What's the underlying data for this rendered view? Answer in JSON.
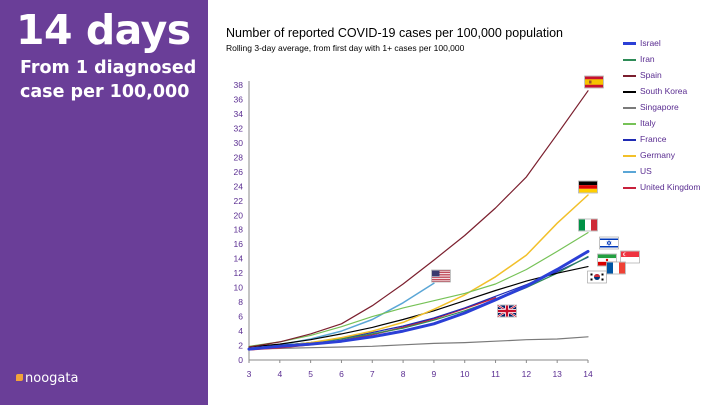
{
  "panel": {
    "title": "14 days",
    "subtitle": "From 1 diagnosed case per 100,000",
    "brand": "noogata"
  },
  "colors": {
    "panel_background": "#6a3e98",
    "brand_accent": "#f2a33a"
  },
  "chart_data": {
    "type": "line",
    "title": "Number of reported COVID-19 cases per 100,000 population",
    "subtitle": "Rolling 3-day average, from first day with 1+ cases per 100,000",
    "xlabel": "",
    "ylabel": "",
    "xlim": [
      3,
      14
    ],
    "ylim": [
      0,
      38
    ],
    "x_ticks": [
      3,
      4,
      5,
      6,
      7,
      8,
      9,
      10,
      11,
      12,
      13,
      14
    ],
    "y_ticks": [
      0,
      2,
      4,
      6,
      8,
      10,
      12,
      14,
      16,
      18,
      20,
      22,
      24,
      26,
      28,
      30,
      32,
      34,
      36,
      38
    ],
    "grid": false,
    "legend_position": "right",
    "series": [
      {
        "name": "Israel",
        "color": "#2b3fd6",
        "width": 3,
        "x": [
          3,
          4,
          5,
          6,
          7,
          8,
          9,
          10,
          11,
          12,
          13,
          14
        ],
        "y": [
          1.5,
          1.9,
          2.2,
          2.6,
          3.2,
          4.0,
          5.0,
          6.5,
          8.3,
          10.2,
          12.5,
          15.0
        ],
        "flag": "israel-flag"
      },
      {
        "name": "Iran",
        "color": "#2e8b57",
        "width": 1.2,
        "x": [
          3,
          4,
          5,
          6,
          7,
          8,
          9,
          10,
          11,
          12,
          13,
          14
        ],
        "y": [
          1.6,
          2.0,
          2.4,
          2.9,
          3.6,
          4.4,
          5.5,
          6.8,
          8.3,
          10.0,
          12.0,
          14.3
        ],
        "flag": "iran-flag"
      },
      {
        "name": "Spain",
        "color": "#7b1f2e",
        "width": 1.2,
        "x": [
          3,
          4,
          5,
          6,
          7,
          8,
          9,
          10,
          11,
          12,
          13,
          14
        ],
        "y": [
          1.8,
          2.5,
          3.6,
          5.0,
          7.5,
          10.5,
          13.8,
          17.2,
          21.0,
          25.3,
          31.2,
          37.2
        ],
        "flag": "spain-flag"
      },
      {
        "name": "South Korea",
        "color": "#000000",
        "width": 1.2,
        "x": [
          3,
          4,
          5,
          6,
          7,
          8,
          9,
          10,
          11,
          12,
          13,
          14
        ],
        "y": [
          1.8,
          2.2,
          2.8,
          3.6,
          4.5,
          5.6,
          6.8,
          8.2,
          9.6,
          10.9,
          12.0,
          12.9
        ],
        "flag": "south-korea-flag"
      },
      {
        "name": "Singapore",
        "color": "#7a7a7a",
        "width": 1.2,
        "x": [
          3,
          4,
          5,
          6,
          7,
          8,
          9,
          10,
          11,
          12,
          13,
          14
        ],
        "y": [
          1.5,
          1.6,
          1.7,
          1.8,
          1.9,
          2.1,
          2.3,
          2.4,
          2.6,
          2.8,
          2.9,
          3.2
        ],
        "flag": "singapore-flag"
      },
      {
        "name": "Italy",
        "color": "#76c257",
        "width": 1.2,
        "x": [
          3,
          4,
          5,
          6,
          7,
          8,
          9,
          10,
          11,
          12,
          13,
          14
        ],
        "y": [
          1.9,
          2.5,
          3.4,
          4.6,
          6.0,
          7.2,
          8.2,
          9.2,
          10.5,
          12.5,
          15.0,
          17.6
        ],
        "flag": "italy-flag"
      },
      {
        "name": "France",
        "color": "#1f2bb3",
        "width": 1.2,
        "x": [
          3,
          4,
          5,
          6,
          7,
          8,
          9,
          10,
          11,
          12,
          13,
          14
        ],
        "y": [
          1.6,
          2.0,
          2.4,
          3.0,
          3.8,
          4.7,
          5.8,
          7.2,
          8.8,
          10.4,
          12.2,
          14.2
        ],
        "flag": "france-flag"
      },
      {
        "name": "Germany",
        "color": "#f2c02a",
        "width": 1.5,
        "x": [
          3,
          4,
          5,
          6,
          7,
          8,
          9,
          10,
          11,
          12,
          13,
          14
        ],
        "y": [
          1.5,
          1.9,
          2.4,
          3.1,
          4.0,
          5.2,
          7.0,
          9.0,
          11.5,
          14.5,
          18.9,
          22.8
        ],
        "flag": "germany-flag"
      },
      {
        "name": "US",
        "color": "#5aa6d6",
        "width": 1.5,
        "x": [
          3,
          4,
          5,
          6,
          7,
          8,
          9
        ],
        "y": [
          1.5,
          2.1,
          2.9,
          4.0,
          5.6,
          7.9,
          10.6
        ],
        "flag": "us-flag"
      },
      {
        "name": "United Kingdom",
        "color": "#c8213c",
        "width": 1.5,
        "x": [
          3,
          4,
          5,
          6,
          7,
          8,
          9,
          10,
          11
        ],
        "y": [
          1.4,
          1.7,
          2.1,
          2.7,
          3.5,
          4.5,
          5.7,
          7.1,
          8.6
        ],
        "flag": "uk-flag"
      }
    ]
  }
}
